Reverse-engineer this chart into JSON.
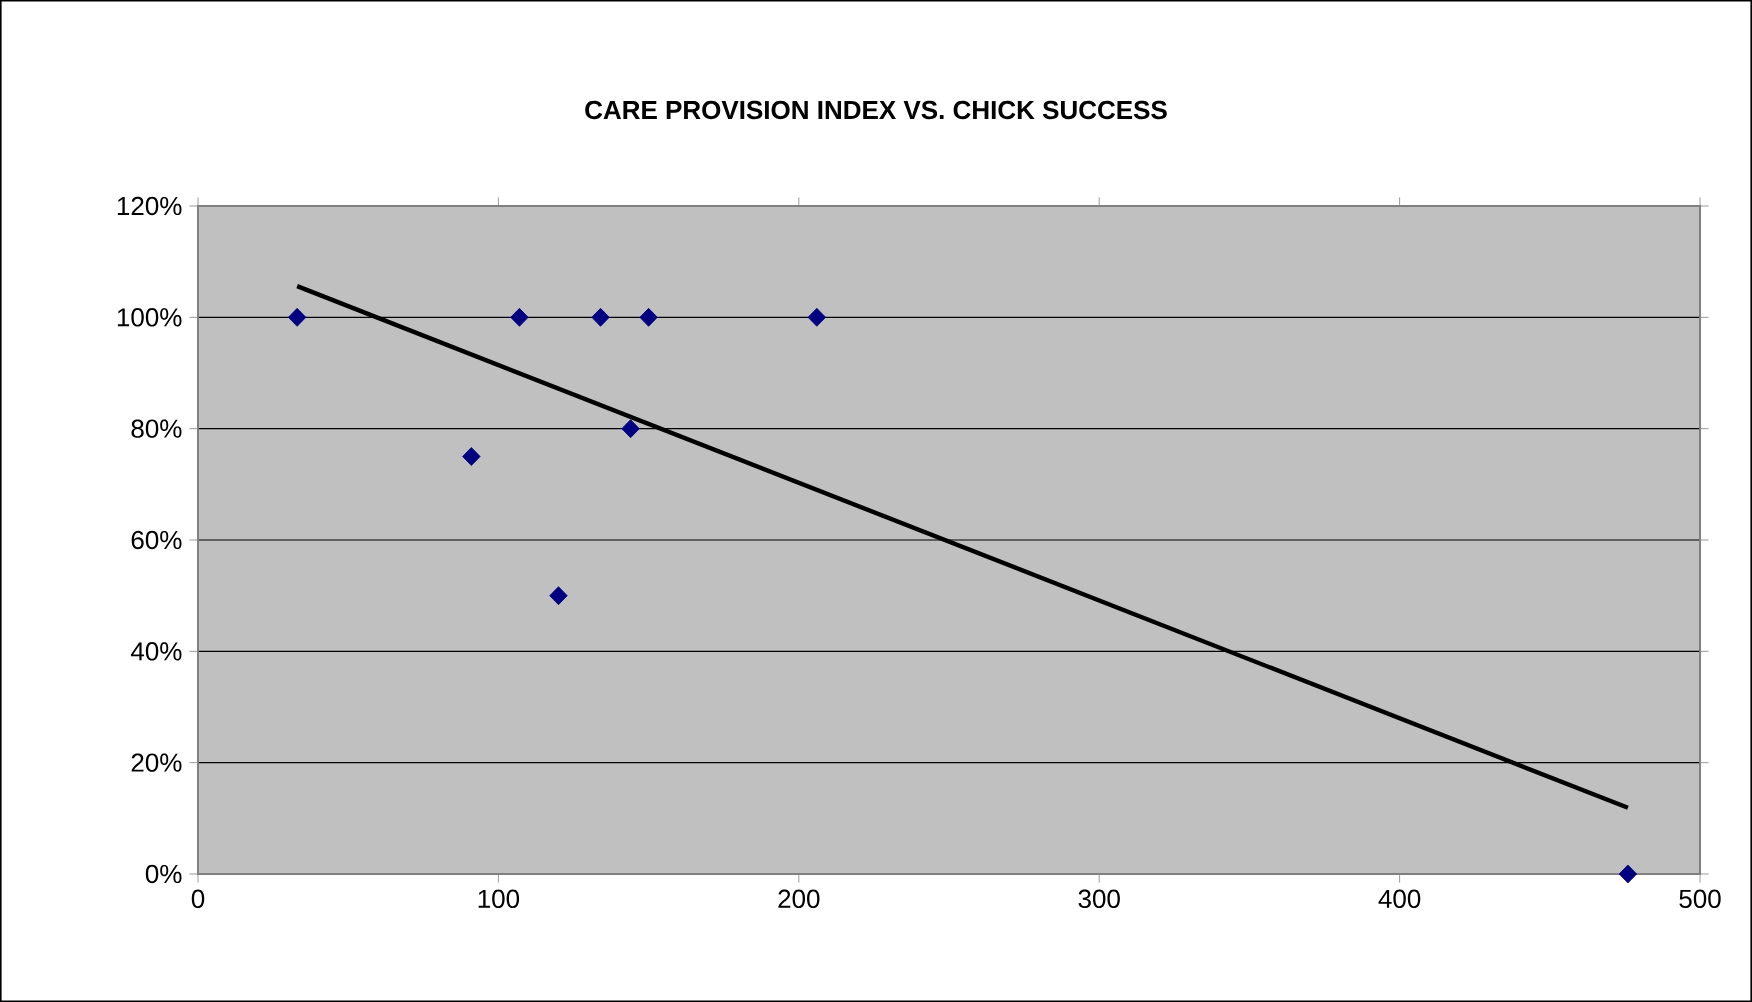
{
  "chart_data": {
    "type": "scatter",
    "title": "CARE PROVISION INDEX VS. CHICK SUCCESS",
    "series": [
      {
        "color": "#000080",
        "marker": "diamond",
        "x": [
          33,
          91,
          107,
          120,
          134,
          144,
          150,
          206,
          476
        ],
        "values": [
          100,
          75,
          100,
          50,
          100,
          80,
          100,
          100,
          0
        ]
      },
      {
        "type": "line",
        "color": "#000000",
        "marker": "none",
        "line_style": "solid",
        "x": [
          33,
          476
        ],
        "values": [
          105.6,
          11.9
        ]
      }
    ],
    "xlim": [
      0,
      500
    ],
    "xticks": [
      0,
      100,
      200,
      300,
      400,
      500
    ],
    "ylim": [
      0,
      120
    ],
    "yticks": [
      {
        "value": 0,
        "label": "0%"
      },
      {
        "value": 20,
        "label": "20%"
      },
      {
        "value": 40,
        "label": "40%"
      },
      {
        "value": 60,
        "label": "60%"
      },
      {
        "value": 80,
        "label": "80%"
      },
      {
        "value": 100,
        "label": "100%"
      },
      {
        "value": 120,
        "label": "120%"
      }
    ],
    "grid": "y"
  }
}
